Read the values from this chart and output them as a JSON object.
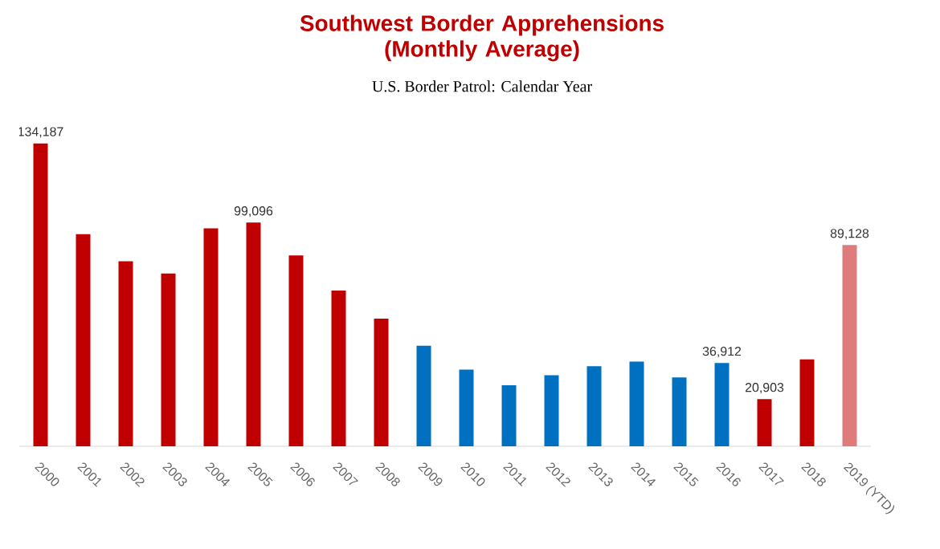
{
  "chart_data": {
    "type": "bar",
    "title": "Southwest Border Apprehensions (Monthly Average)",
    "subtitle": "U.S. Border Patrol: Calendar Year",
    "categories": [
      "2000",
      "2001",
      "2002",
      "2003",
      "2004",
      "2005",
      "2006",
      "2007",
      "2008",
      "2009",
      "2010",
      "2011",
      "2012",
      "2013",
      "2014",
      "2015",
      "2016",
      "2017",
      "2018",
      "2019 (YTD)"
    ],
    "values": [
      134187,
      94000,
      82000,
      76500,
      96500,
      99096,
      84500,
      69000,
      56500,
      44500,
      34000,
      27000,
      31500,
      35500,
      37500,
      30500,
      36912,
      20903,
      38500,
      89128
    ],
    "colors": [
      "#c00000",
      "#c00000",
      "#c00000",
      "#c00000",
      "#c00000",
      "#c00000",
      "#c00000",
      "#c00000",
      "#c00000",
      "#0070c0",
      "#0070c0",
      "#0070c0",
      "#0070c0",
      "#0070c0",
      "#0070c0",
      "#0070c0",
      "#0070c0",
      "#c00000",
      "#c00000",
      "#e07b7b"
    ],
    "value_labels": [
      "134,187",
      null,
      null,
      null,
      null,
      "99,096",
      null,
      null,
      null,
      null,
      null,
      null,
      null,
      null,
      null,
      null,
      "36,912",
      "20,903",
      null,
      "89,128"
    ]
  }
}
